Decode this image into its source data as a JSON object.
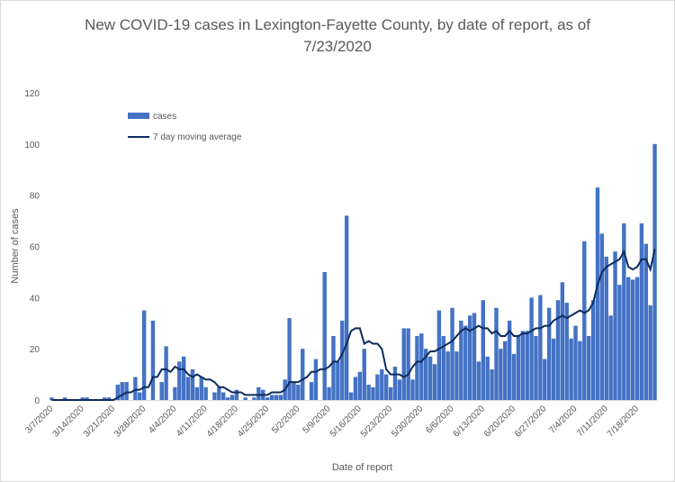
{
  "chart_data": {
    "type": "bar",
    "title_line1": "New COVID-19 cases in Lexington-Fayette County, by date of report, as of",
    "title_line2": "7/23/2020",
    "xlabel": "Date of report",
    "ylabel": "Number of cases",
    "ylim": [
      0,
      120
    ],
    "yticks": [
      "0",
      "20",
      "40",
      "60",
      "80",
      "100",
      "120"
    ],
    "xtick_labels": [
      "3/7/2020",
      "3/14/2020",
      "3/21/2020",
      "3/28/2020",
      "4/4/2020",
      "4/11/2020",
      "4/18/2020",
      "4/25/2020",
      "5/2/2020",
      "5/9/2020",
      "5/16/2020",
      "5/23/2020",
      "5/30/2020",
      "6/6/2020",
      "6/13/2020",
      "6/20/2020",
      "6/27/2020",
      "7/4/2020",
      "7/11/2020",
      "7/18/2020"
    ],
    "grid": false,
    "legend_position": "top-left",
    "series": [
      {
        "name": "cases",
        "kind": "bar",
        "color": "#4472c4",
        "values": [
          1,
          0,
          0,
          1,
          0,
          0,
          0,
          1,
          1,
          0,
          0,
          0,
          1,
          1,
          0,
          6,
          7,
          7,
          0,
          9,
          3,
          35,
          0,
          31,
          0,
          7,
          21,
          0,
          5,
          15,
          17,
          9,
          12,
          5,
          9,
          5,
          0,
          3,
          5,
          3,
          1,
          2,
          4,
          0,
          1,
          0,
          1,
          5,
          4,
          1,
          2,
          2,
          2,
          8,
          32,
          7,
          6,
          20,
          0,
          7,
          16,
          0,
          50,
          5,
          25,
          15,
          31,
          72,
          3,
          9,
          11,
          20,
          6,
          5,
          10,
          12,
          10,
          5,
          13,
          8,
          28,
          28,
          8,
          25,
          26,
          20,
          17,
          14,
          35,
          25,
          19,
          36,
          19,
          31,
          29,
          33,
          34,
          15,
          39,
          17,
          12,
          36,
          20,
          23,
          31,
          18,
          25,
          27,
          27,
          40,
          25,
          41,
          16,
          36,
          24,
          39,
          46,
          38,
          24,
          29,
          23,
          62,
          25,
          39,
          83,
          65,
          56,
          33,
          58,
          45,
          69,
          48,
          47,
          48,
          69,
          61,
          37,
          100
        ]
      },
      {
        "name": "7 day moving average",
        "kind": "line",
        "color": "#0d2b5e",
        "values": [
          0,
          0,
          0,
          0,
          0,
          0,
          0,
          0,
          0,
          0,
          0,
          0,
          0,
          0,
          0,
          1,
          2,
          3,
          3,
          4,
          4,
          5,
          5,
          9,
          9,
          12,
          12,
          11,
          13,
          12,
          12,
          10,
          9,
          10,
          9,
          8,
          8,
          7,
          5,
          5,
          4,
          3,
          3,
          3,
          2,
          2,
          2,
          2,
          2,
          2,
          3,
          3,
          3,
          4,
          7,
          7,
          7,
          8,
          9,
          11,
          11,
          12,
          12,
          13,
          15,
          15,
          18,
          22,
          27,
          28,
          28,
          22,
          23,
          22,
          22,
          20,
          12,
          10,
          10,
          10,
          9,
          10,
          13,
          15,
          15,
          17,
          19,
          19,
          20,
          21,
          22,
          23,
          25,
          27,
          28,
          27,
          28,
          29,
          28,
          28,
          26,
          27,
          25,
          25,
          27,
          25,
          25,
          26,
          26,
          27,
          28,
          28,
          29,
          29,
          31,
          32,
          33,
          32,
          33,
          34,
          35,
          34,
          35,
          38,
          45,
          50,
          52,
          53,
          54,
          55,
          58,
          52,
          51,
          52,
          55,
          55,
          51,
          59
        ]
      }
    ]
  }
}
